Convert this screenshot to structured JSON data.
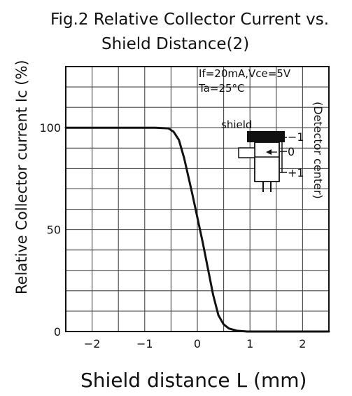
{
  "chart_data": {
    "type": "line",
    "title_lines": [
      "Fig.2  Relative  Collector  Current  vs.",
      "Shield  Distance(2)"
    ],
    "xlabel": "Shield  distance  L  (mm)",
    "ylabel": "Relative  Collector  current  Ic  (%)",
    "xlim": [
      -2.5,
      2.5
    ],
    "ylim": [
      0,
      130
    ],
    "x_ticks": [
      {
        "value": -2,
        "label": "−2"
      },
      {
        "value": -1,
        "label": "−1"
      },
      {
        "value": 0,
        "label": "0"
      },
      {
        "value": 1,
        "label": "1"
      },
      {
        "value": 2,
        "label": "2"
      }
    ],
    "y_ticks": [
      {
        "value": 0,
        "label": "0"
      },
      {
        "value": 50,
        "label": "50"
      },
      {
        "value": 100,
        "label": "100"
      }
    ],
    "grid": true,
    "series": [
      {
        "x": [
          -2.5,
          -1.5,
          -0.8,
          -0.55,
          -0.45,
          -0.35,
          -0.25,
          -0.1,
          0.0,
          0.1,
          0.2,
          0.3,
          0.4,
          0.5,
          0.6,
          0.75,
          0.95,
          1.1,
          1.5,
          2.0,
          2.5
        ],
        "y": [
          100,
          100,
          100,
          99.7,
          98,
          94,
          85,
          68,
          56,
          44,
          31,
          18,
          8,
          3.5,
          1.5,
          0.4,
          0,
          0,
          0,
          0,
          0
        ]
      }
    ],
    "annotations": {
      "conditions": [
        "If=20mA,Vce=5V",
        "Ta=25°C"
      ],
      "side_label": "(Detector  center)",
      "shield_label": "shield",
      "inset_marks": [
        "−1",
        "0",
        "+1"
      ]
    }
  }
}
